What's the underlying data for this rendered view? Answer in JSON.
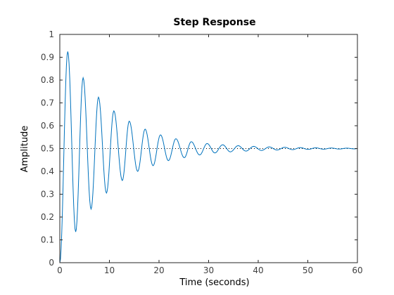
{
  "chart_data": {
    "type": "line",
    "title": "Step Response",
    "xlabel": "Time (seconds)",
    "ylabel": "Amplitude",
    "xlim": [
      0,
      60
    ],
    "ylim": [
      0,
      1
    ],
    "xticks": [
      0,
      10,
      20,
      30,
      40,
      50,
      60
    ],
    "yticks": [
      0,
      0.1,
      0.2,
      0.3,
      0.4,
      0.5,
      0.6,
      0.7,
      0.8,
      0.9,
      1
    ],
    "grid": false,
    "legend": "none",
    "series_color": "#0072bd",
    "steady_state": 0.5,
    "peaks": [
      {
        "x": 1.6,
        "y": 0.925
      },
      {
        "x": 4.7,
        "y": 0.81
      },
      {
        "x": 7.8,
        "y": 0.725
      },
      {
        "x": 10.9,
        "y": 0.665
      },
      {
        "x": 14.0,
        "y": 0.62
      },
      {
        "x": 17.2,
        "y": 0.585
      },
      {
        "x": 20.3,
        "y": 0.56
      },
      {
        "x": 23.4,
        "y": 0.543
      },
      {
        "x": 26.5,
        "y": 0.53
      },
      {
        "x": 29.7,
        "y": 0.522
      }
    ],
    "troughs": [
      {
        "x": 3.2,
        "y": 0.135
      },
      {
        "x": 6.3,
        "y": 0.235
      },
      {
        "x": 9.4,
        "y": 0.305
      },
      {
        "x": 12.6,
        "y": 0.36
      },
      {
        "x": 15.7,
        "y": 0.4
      },
      {
        "x": 18.8,
        "y": 0.425
      },
      {
        "x": 21.9,
        "y": 0.447
      },
      {
        "x": 25.1,
        "y": 0.46
      },
      {
        "x": 28.2,
        "y": 0.472
      }
    ],
    "response": {
      "description": "underdamped second-order step response",
      "final_value": 0.5,
      "first_peak": 0.925,
      "oscillation_period": 3.13,
      "settles_near": 55
    }
  }
}
